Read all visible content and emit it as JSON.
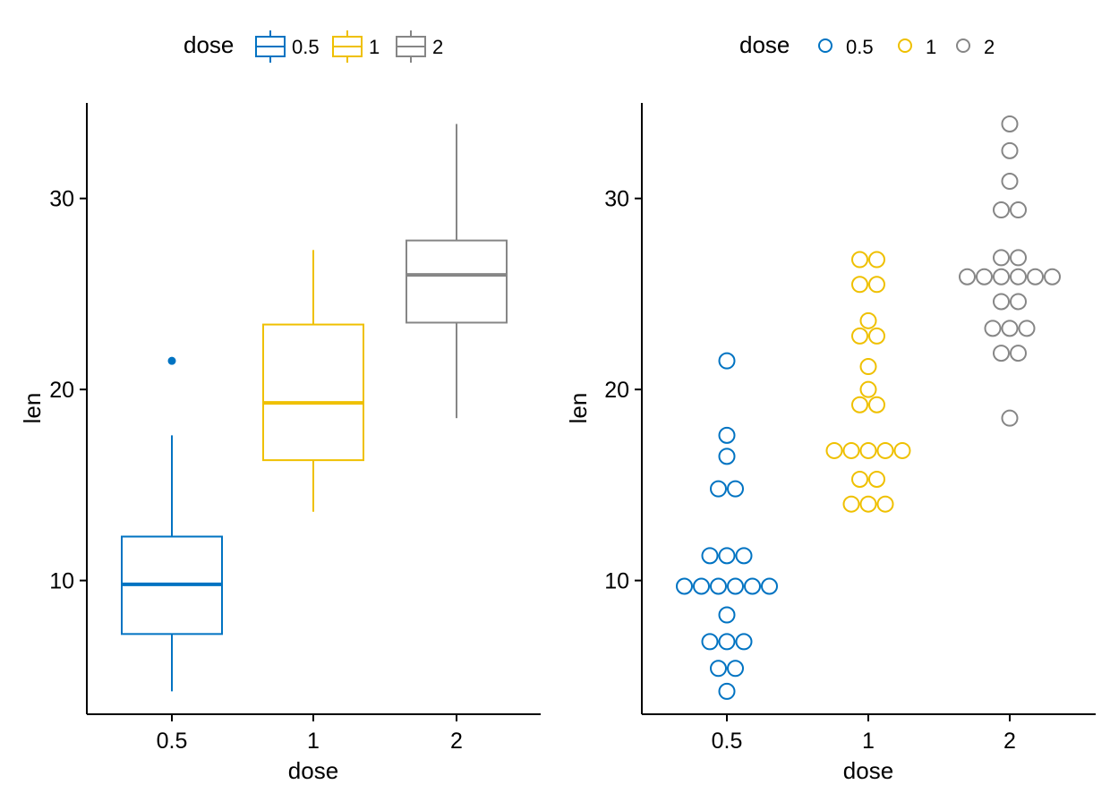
{
  "chart_data": [
    {
      "type": "boxplot",
      "xlabel": "dose",
      "ylabel": "len",
      "categories": [
        "0.5",
        "1",
        "2"
      ],
      "yticks": [
        10,
        20,
        30
      ],
      "ylim": [
        3,
        35
      ],
      "legend": {
        "title": "dose",
        "position": "top",
        "entries": [
          "0.5",
          "1",
          "2"
        ]
      },
      "series": [
        {
          "name": "0.5",
          "color": "#0073C2",
          "min": 4.2,
          "q1": 7.2,
          "median": 9.8,
          "q3": 12.3,
          "max": 17.6,
          "outliers": [
            21.5
          ]
        },
        {
          "name": "1",
          "color": "#EFC000",
          "min": 13.6,
          "q1": 16.3,
          "median": 19.3,
          "q3": 23.4,
          "max": 27.3,
          "outliers": []
        },
        {
          "name": "2",
          "color": "#868686",
          "min": 18.5,
          "q1": 23.5,
          "median": 26.0,
          "q3": 27.8,
          "max": 33.9,
          "outliers": []
        }
      ]
    },
    {
      "type": "dotplot",
      "xlabel": "dose",
      "ylabel": "len",
      "categories": [
        "0.5",
        "1",
        "2"
      ],
      "yticks": [
        10,
        20,
        30
      ],
      "ylim": [
        3,
        35
      ],
      "legend": {
        "title": "dose",
        "position": "top",
        "entries": [
          "0.5",
          "1",
          "2"
        ]
      },
      "series": [
        {
          "name": "0.5",
          "color": "#0073C2",
          "groups": [
            {
              "y": 4.2,
              "count": 1
            },
            {
              "y": 5.4,
              "count": 2
            },
            {
              "y": 6.8,
              "count": 3
            },
            {
              "y": 8.2,
              "count": 1
            },
            {
              "y": 9.7,
              "count": 6
            },
            {
              "y": 11.3,
              "count": 3
            },
            {
              "y": 14.8,
              "count": 2
            },
            {
              "y": 16.5,
              "count": 1
            },
            {
              "y": 17.6,
              "count": 1
            },
            {
              "y": 21.5,
              "count": 1
            }
          ]
        },
        {
          "name": "1",
          "color": "#EFC000",
          "groups": [
            {
              "y": 14.0,
              "count": 3
            },
            {
              "y": 15.3,
              "count": 2
            },
            {
              "y": 16.8,
              "count": 5
            },
            {
              "y": 19.2,
              "count": 2
            },
            {
              "y": 20.0,
              "count": 1
            },
            {
              "y": 21.2,
              "count": 1
            },
            {
              "y": 22.8,
              "count": 2
            },
            {
              "y": 23.6,
              "count": 1
            },
            {
              "y": 25.5,
              "count": 2
            },
            {
              "y": 26.8,
              "count": 2
            }
          ]
        },
        {
          "name": "2",
          "color": "#868686",
          "groups": [
            {
              "y": 18.5,
              "count": 1
            },
            {
              "y": 21.9,
              "count": 2
            },
            {
              "y": 23.2,
              "count": 3
            },
            {
              "y": 24.6,
              "count": 2
            },
            {
              "y": 25.9,
              "count": 6
            },
            {
              "y": 26.9,
              "count": 2
            },
            {
              "y": 29.4,
              "count": 2
            },
            {
              "y": 30.9,
              "count": 1
            },
            {
              "y": 32.5,
              "count": 1
            },
            {
              "y": 33.9,
              "count": 1
            }
          ]
        }
      ]
    }
  ]
}
